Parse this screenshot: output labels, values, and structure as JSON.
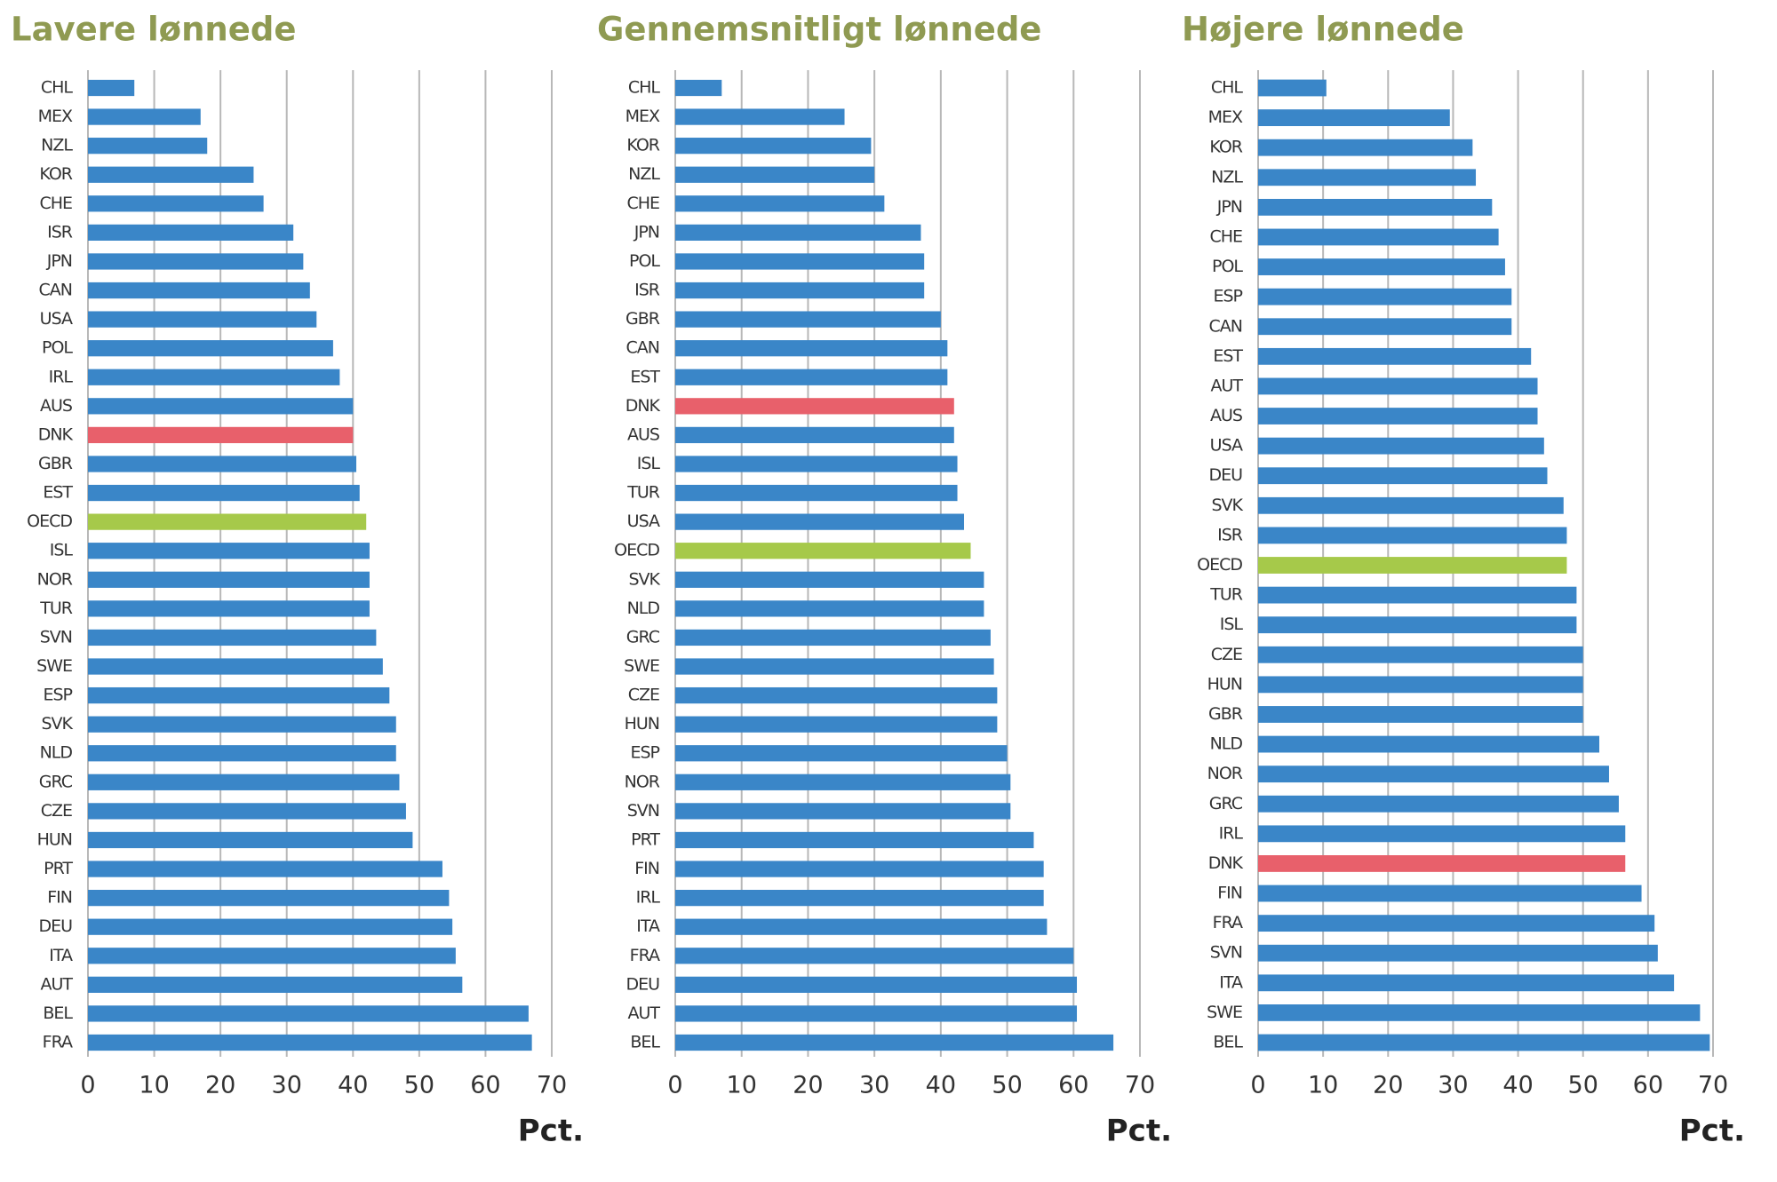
{
  "chart_data": [
    {
      "type": "bar",
      "orientation": "horizontal",
      "title": "Lavere lønnede",
      "xlabel": "Pct.",
      "categories": [
        "CHL",
        "MEX",
        "NZL",
        "KOR",
        "CHE",
        "ISR",
        "JPN",
        "CAN",
        "USA",
        "POL",
        "IRL",
        "AUS",
        "DNK",
        "GBR",
        "EST",
        "OECD",
        "ISL",
        "NOR",
        "TUR",
        "SVN",
        "SWE",
        "ESP",
        "SVK",
        "NLD",
        "GRC",
        "CZE",
        "HUN",
        "PRT",
        "FIN",
        "DEU",
        "ITA",
        "AUT",
        "BEL",
        "FRA"
      ],
      "values": [
        7,
        17,
        18,
        25,
        26.5,
        31,
        32.5,
        33.5,
        34.5,
        37,
        38,
        40,
        40,
        40.5,
        41,
        42,
        42.5,
        42.5,
        42.5,
        43.5,
        44.5,
        45.5,
        46.5,
        46.5,
        47,
        48,
        49,
        53.5,
        54.5,
        55,
        55.5,
        56.5,
        66.5,
        67
      ],
      "colors": [
        "#3a86c8",
        "#3a86c8",
        "#3a86c8",
        "#3a86c8",
        "#3a86c8",
        "#3a86c8",
        "#3a86c8",
        "#3a86c8",
        "#3a86c8",
        "#3a86c8",
        "#3a86c8",
        "#3a86c8",
        "#e8606b",
        "#3a86c8",
        "#3a86c8",
        "#a6c94a",
        "#3a86c8",
        "#3a86c8",
        "#3a86c8",
        "#3a86c8",
        "#3a86c8",
        "#3a86c8",
        "#3a86c8",
        "#3a86c8",
        "#3a86c8",
        "#3a86c8",
        "#3a86c8",
        "#3a86c8",
        "#3a86c8",
        "#3a86c8",
        "#3a86c8",
        "#3a86c8",
        "#3a86c8",
        "#3a86c8"
      ],
      "xlim": [
        0,
        70
      ],
      "xticks": [
        0,
        10,
        20,
        30,
        40,
        50,
        60,
        70
      ],
      "grid": true
    },
    {
      "type": "bar",
      "orientation": "horizontal",
      "title": "Gennemsnitligt lønnede",
      "xlabel": "Pct.",
      "categories": [
        "CHL",
        "MEX",
        "KOR",
        "NZL",
        "CHE",
        "JPN",
        "POL",
        "ISR",
        "GBR",
        "CAN",
        "EST",
        "DNK",
        "AUS",
        "ISL",
        "TUR",
        "USA",
        "OECD",
        "SVK",
        "NLD",
        "GRC",
        "SWE",
        "CZE",
        "HUN",
        "ESP",
        "NOR",
        "SVN",
        "PRT",
        "FIN",
        "IRL",
        "ITA",
        "FRA",
        "DEU",
        "AUT",
        "BEL"
      ],
      "values": [
        7,
        25.5,
        29.5,
        30,
        31.5,
        37,
        37.5,
        37.5,
        40,
        41,
        41,
        42,
        42,
        42.5,
        42.5,
        43.5,
        44.5,
        46.5,
        46.5,
        47.5,
        48,
        48.5,
        48.5,
        50,
        50.5,
        50.5,
        54,
        55.5,
        55.5,
        56,
        60,
        60.5,
        60.5,
        66
      ],
      "colors": [
        "#3a86c8",
        "#3a86c8",
        "#3a86c8",
        "#3a86c8",
        "#3a86c8",
        "#3a86c8",
        "#3a86c8",
        "#3a86c8",
        "#3a86c8",
        "#3a86c8",
        "#3a86c8",
        "#e8606b",
        "#3a86c8",
        "#3a86c8",
        "#3a86c8",
        "#3a86c8",
        "#a6c94a",
        "#3a86c8",
        "#3a86c8",
        "#3a86c8",
        "#3a86c8",
        "#3a86c8",
        "#3a86c8",
        "#3a86c8",
        "#3a86c8",
        "#3a86c8",
        "#3a86c8",
        "#3a86c8",
        "#3a86c8",
        "#3a86c8",
        "#3a86c8",
        "#3a86c8",
        "#3a86c8",
        "#3a86c8"
      ],
      "xlim": [
        0,
        70
      ],
      "xticks": [
        0,
        10,
        20,
        30,
        40,
        50,
        60,
        70
      ],
      "grid": true
    },
    {
      "type": "bar",
      "orientation": "horizontal",
      "title": "Højere lønnede",
      "xlabel": "Pct.",
      "categories": [
        "CHL",
        "MEX",
        "KOR",
        "NZL",
        "JPN",
        "CHE",
        "POL",
        "ESP",
        "CAN",
        "EST",
        "AUT",
        "AUS",
        "USA",
        "DEU",
        "SVK",
        "ISR",
        "OECD",
        "TUR",
        "ISL",
        "CZE",
        "HUN",
        "GBR",
        "NLD",
        "NOR",
        "GRC",
        "IRL",
        "DNK",
        "FIN",
        "FRA",
        "SVN",
        "ITA",
        "SWE",
        "BEL"
      ],
      "values": [
        10.5,
        29.5,
        33,
        33.5,
        36,
        37,
        38,
        39,
        39,
        42,
        43,
        43,
        44,
        44.5,
        47,
        47.5,
        47.5,
        49,
        49,
        50,
        50,
        50,
        52.5,
        54,
        55.5,
        56.5,
        56.5,
        59,
        61,
        61.5,
        64,
        68,
        69.5
      ],
      "colors": [
        "#3a86c8",
        "#3a86c8",
        "#3a86c8",
        "#3a86c8",
        "#3a86c8",
        "#3a86c8",
        "#3a86c8",
        "#3a86c8",
        "#3a86c8",
        "#3a86c8",
        "#3a86c8",
        "#3a86c8",
        "#3a86c8",
        "#3a86c8",
        "#3a86c8",
        "#3a86c8",
        "#a6c94a",
        "#3a86c8",
        "#3a86c8",
        "#3a86c8",
        "#3a86c8",
        "#3a86c8",
        "#3a86c8",
        "#3a86c8",
        "#3a86c8",
        "#3a86c8",
        "#e8606b",
        "#3a86c8",
        "#3a86c8",
        "#3a86c8",
        "#3a86c8",
        "#3a86c8",
        "#3a86c8"
      ],
      "xlim": [
        0,
        70
      ],
      "xticks": [
        0,
        10,
        20,
        30,
        40,
        50,
        60,
        70
      ],
      "grid": true
    }
  ]
}
